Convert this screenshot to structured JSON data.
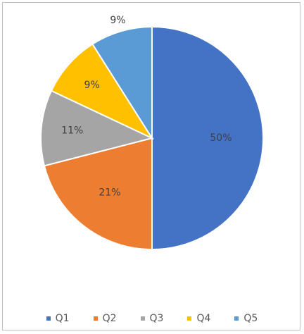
{
  "chart_data": {
    "type": "pie",
    "categories": [
      "Q1",
      "Q2",
      "Q3",
      "Q4",
      "Q5"
    ],
    "values": [
      50,
      21,
      11,
      9,
      9
    ],
    "labels": [
      "50%",
      "21%",
      "11%",
      "9%",
      "9%"
    ],
    "colors": [
      "#4472c4",
      "#ed7d31",
      "#a5a5a5",
      "#ffc000",
      "#5b9bd5"
    ],
    "start_angle": "12 o'clock, clockwise",
    "legend": "bottom",
    "title": ""
  }
}
